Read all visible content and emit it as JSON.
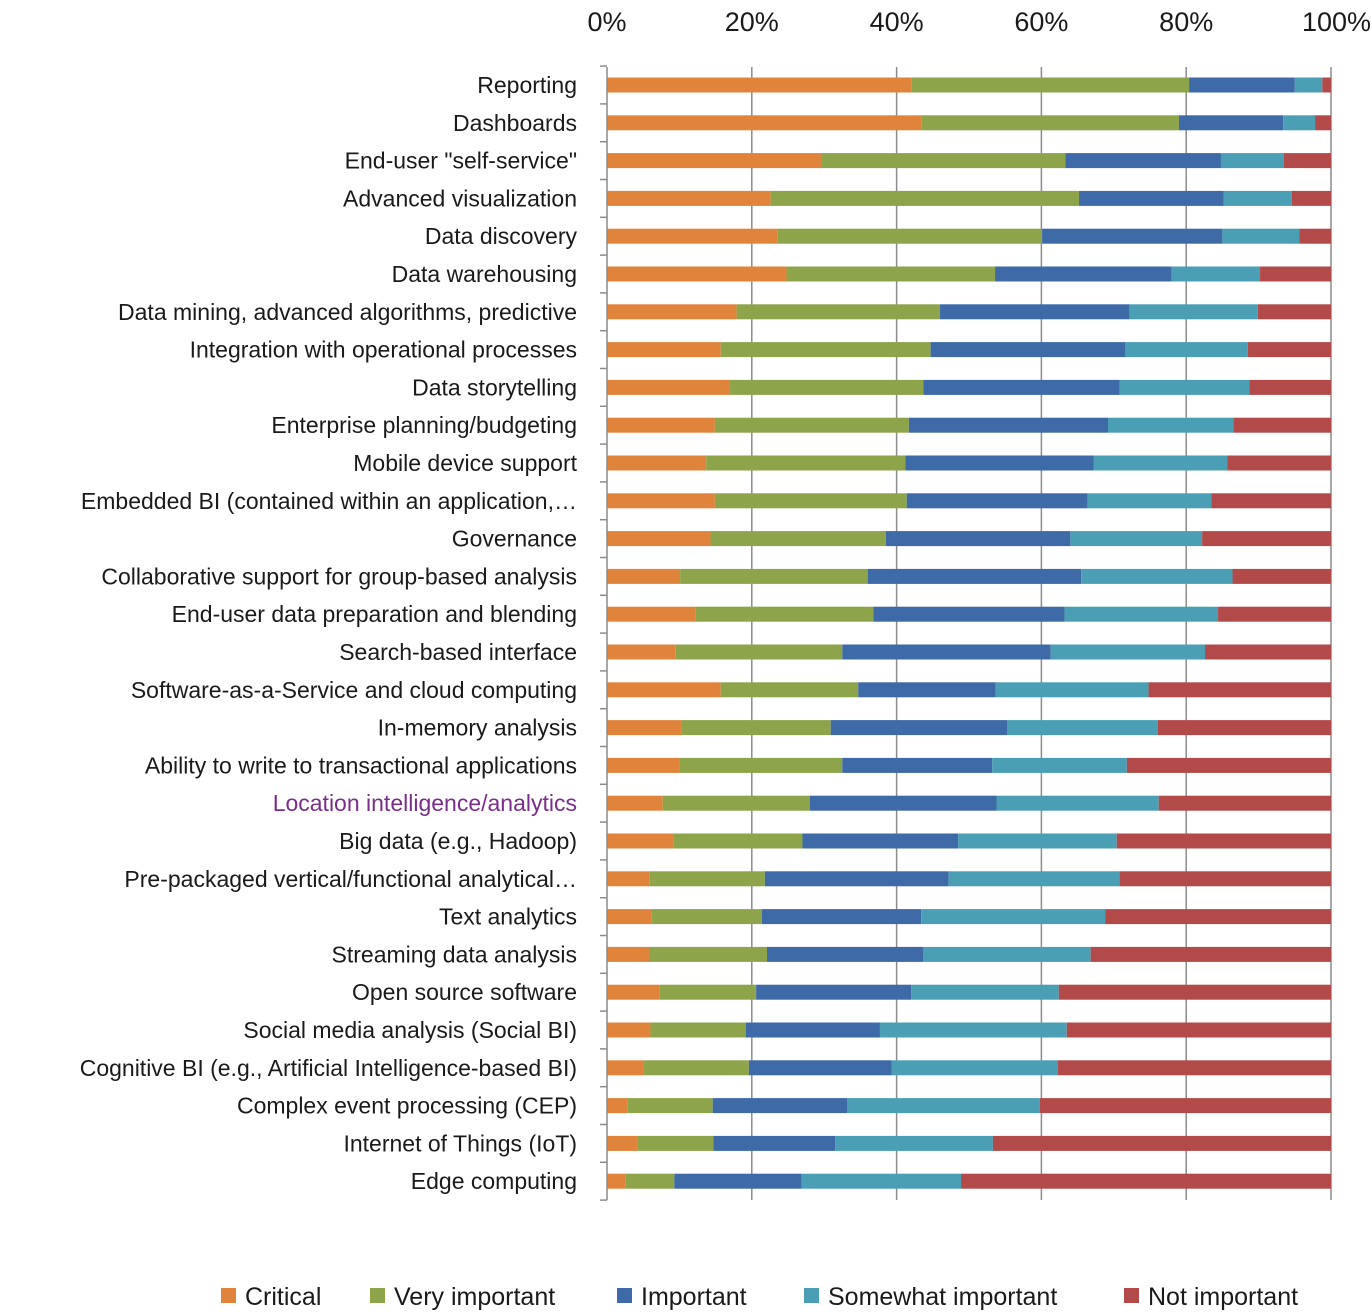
{
  "chart_data": {
    "type": "bar",
    "orientation": "horizontal",
    "stacked": true,
    "normalized": true,
    "x_axis_position": "top",
    "xlim": [
      0,
      100
    ],
    "x_ticks": [
      "0%",
      "20%",
      "40%",
      "60%",
      "80%",
      "100%"
    ],
    "grid": true,
    "legend_position": "bottom",
    "highlight_category": "Location intelligence/analytics",
    "categories": [
      "Reporting",
      "Dashboards",
      "End-user \"self-service\"",
      "Advanced visualization",
      "Data discovery",
      "Data warehousing",
      "Data mining, advanced algorithms, predictive",
      "Integration with operational processes",
      "Data storytelling",
      "Enterprise planning/budgeting",
      "Mobile device support",
      "Embedded BI (contained within an application,…",
      "Governance",
      "Collaborative support for group-based analysis",
      "End-user data preparation and blending",
      "Search-based interface",
      "Software-as-a-Service and cloud computing",
      "In-memory analysis",
      "Ability to write to transactional applications",
      "Location intelligence/analytics",
      "Big data (e.g., Hadoop)",
      "Pre-packaged vertical/functional analytical…",
      "Text analytics",
      "Streaming data analysis",
      "Open source software",
      "Social media analysis (Social BI)",
      "Cognitive BI (e.g., Artificial Intelligence-based BI)",
      "Complex event processing (CEP)",
      "Internet of Things (IoT)",
      "Edge computing"
    ],
    "series": [
      {
        "name": "Critical",
        "color": "#e0843b",
        "values": [
          42.1,
          43.4,
          29.7,
          22.6,
          23.6,
          24.8,
          17.9,
          15.7,
          17.0,
          14.9,
          13.7,
          14.9,
          14.3,
          10.1,
          12.2,
          9.5,
          15.7,
          10.3,
          10.0,
          7.7,
          9.2,
          5.9,
          6.1,
          5.8,
          7.3,
          6.0,
          5.1,
          2.8,
          4.2,
          2.6
        ]
      },
      {
        "name": "Very important",
        "color": "#8ea44a",
        "values": [
          38.3,
          35.6,
          33.6,
          42.6,
          36.5,
          28.8,
          28.1,
          29.0,
          26.7,
          26.8,
          27.5,
          26.5,
          24.2,
          25.9,
          24.6,
          23.0,
          19.0,
          20.6,
          22.5,
          20.3,
          17.8,
          15.9,
          15.3,
          16.3,
          13.3,
          13.2,
          14.5,
          11.8,
          10.5,
          6.7
        ]
      },
      {
        "name": "Important",
        "color": "#3e6aa8",
        "values": [
          14.6,
          14.4,
          21.5,
          20.0,
          24.9,
          24.4,
          26.2,
          26.9,
          27.1,
          27.5,
          26.0,
          25.0,
          25.5,
          29.5,
          26.4,
          28.8,
          19.0,
          24.4,
          20.7,
          25.8,
          21.5,
          25.4,
          22.0,
          21.6,
          21.4,
          18.5,
          19.7,
          18.6,
          16.8,
          17.6
        ]
      },
      {
        "name": "Somewhat important",
        "color": "#4a9fb5",
        "values": [
          3.8,
          4.4,
          8.7,
          9.4,
          10.6,
          12.2,
          17.7,
          16.9,
          17.9,
          17.3,
          18.5,
          17.1,
          18.2,
          20.9,
          21.2,
          21.3,
          21.1,
          20.8,
          18.6,
          22.4,
          21.9,
          23.6,
          25.4,
          23.1,
          20.4,
          25.8,
          23.0,
          26.6,
          21.8,
          22.0
        ]
      },
      {
        "name": "Not important",
        "color": "#b24a4a",
        "values": [
          1.2,
          2.2,
          6.5,
          5.4,
          4.4,
          9.8,
          10.1,
          11.5,
          11.3,
          13.5,
          14.3,
          16.5,
          17.8,
          13.6,
          15.6,
          17.4,
          25.2,
          23.9,
          28.2,
          23.8,
          29.6,
          29.2,
          31.2,
          33.2,
          37.6,
          36.5,
          37.7,
          40.2,
          46.7,
          51.1
        ]
      }
    ]
  }
}
